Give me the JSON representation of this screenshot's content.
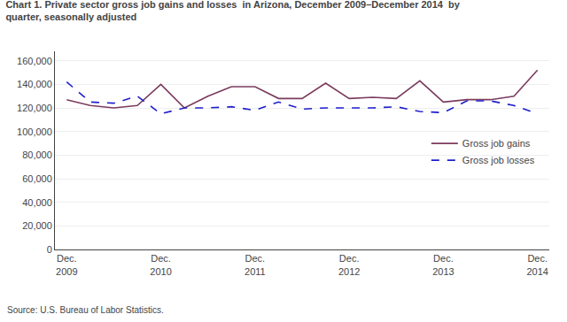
{
  "chart_data": {
    "type": "line",
    "title": "Chart 1. Private sector gross job gains and losses  in Arizona, December 2009–December 2014  by\nquarter, seasonally adjusted",
    "annotations": [
      "Source: U.S. Bureau of Labor Statistics."
    ],
    "categories": [
      "Dec.\n2009",
      null,
      null,
      null,
      "Dec.\n2010",
      null,
      null,
      null,
      "Dec.\n2011",
      null,
      null,
      null,
      "Dec.\n2012",
      null,
      null,
      null,
      "Dec.\n2013",
      null,
      null,
      null,
      "Dec.\n2014"
    ],
    "series": [
      {
        "name": "Gross job gains",
        "color": "#7B3B5E",
        "line_style": "solid",
        "values": [
          127000,
          122000,
          120000,
          122000,
          140000,
          120000,
          130000,
          138000,
          138000,
          128000,
          128000,
          141000,
          128000,
          129000,
          128000,
          143000,
          125000,
          127000,
          127000,
          130000,
          152000
        ]
      },
      {
        "name": "Gross job losses",
        "color": "#1F1FCC",
        "line_style": "dashed",
        "values": [
          142000,
          125000,
          124000,
          130000,
          115000,
          120000,
          120000,
          121000,
          118000,
          125000,
          119000,
          120000,
          120000,
          120000,
          121000,
          117000,
          116000,
          126000,
          126000,
          122000,
          115000
        ]
      }
    ],
    "ylim": [
      0,
      168000
    ],
    "yticks": [
      0,
      {
        "value": 20000,
        "label": "20,000"
      },
      {
        "value": 40000,
        "label": "40,000"
      },
      {
        "value": 60000,
        "label": "60,000"
      },
      {
        "value": 80000,
        "label": "80,000"
      },
      {
        "value": 100000,
        "label": "100,000"
      },
      {
        "value": 120000,
        "label": "120,000"
      },
      {
        "value": 140000,
        "label": "140,000"
      },
      {
        "value": 160000,
        "label": "160,000"
      }
    ],
    "grid": true,
    "legend": "right"
  }
}
